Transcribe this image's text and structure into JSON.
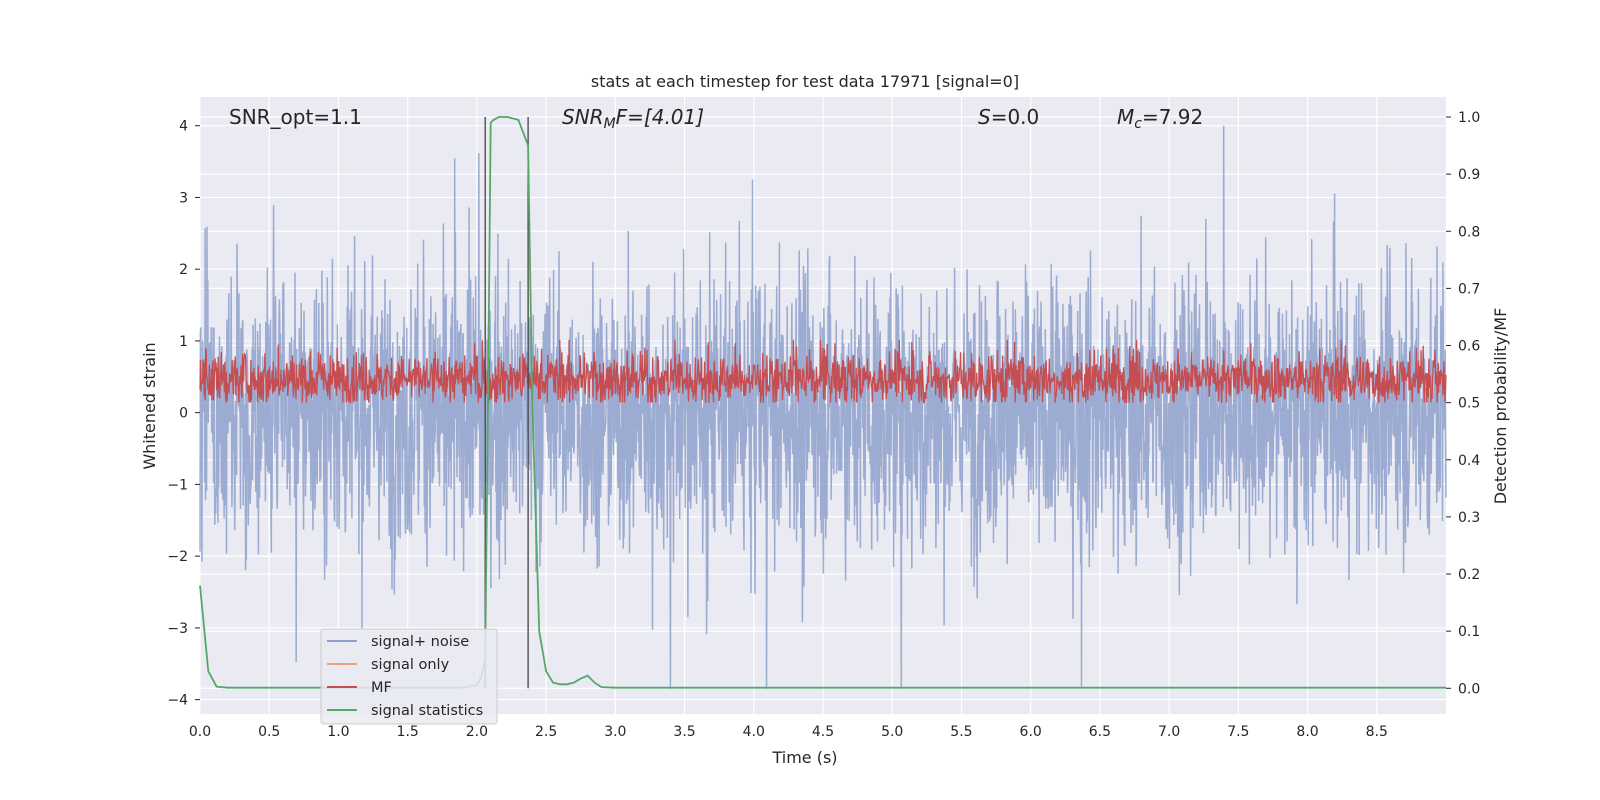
{
  "chart_data": {
    "type": "line",
    "title": "stats at each timestep for test data 17971 [signal=0]",
    "xlabel": "Time (s)",
    "ylabel_left": "Whitened strain",
    "ylabel_right": "Detection probability/MF",
    "xlim": [
      0.0,
      9.0
    ],
    "ylim_left": [
      -4.2,
      4.4
    ],
    "ylim_right": [
      -0.045,
      1.035
    ],
    "x_ticks": [
      0.0,
      0.5,
      1.0,
      1.5,
      2.0,
      2.5,
      3.0,
      3.5,
      4.0,
      4.5,
      5.0,
      5.5,
      6.0,
      6.5,
      7.0,
      7.5,
      8.0,
      8.5
    ],
    "x_tick_labels": [
      "0.0",
      "0.5",
      "1.0",
      "1.5",
      "2.0",
      "2.5",
      "3.0",
      "3.5",
      "4.0",
      "4.5",
      "5.0",
      "5.5",
      "6.0",
      "6.5",
      "7.0",
      "7.5",
      "8.0",
      "8.5"
    ],
    "y_left_ticks": [
      4,
      3,
      2,
      1,
      0,
      -1,
      -2,
      -3,
      -4
    ],
    "y_left_tick_labels": [
      "4",
      "3",
      "2",
      "1",
      "0",
      "−1",
      "−2",
      "−3",
      "−4"
    ],
    "y_right_ticks": [
      1.0,
      0.9,
      0.8,
      0.7,
      0.6,
      0.5,
      0.4,
      0.3,
      0.2,
      0.1,
      0.0
    ],
    "y_right_tick_labels": [
      "1.0",
      "0.9",
      "0.8",
      "0.7",
      "0.6",
      "0.5",
      "0.4",
      "0.3",
      "0.2",
      "0.1",
      "0.0"
    ],
    "annotations": {
      "snr_opt": "SNR_opt=1.1",
      "snr_mf_main": "SNR",
      "snr_mf_sub": "M",
      "snr_mf_rest": "F=[4.01]",
      "s_main": "S",
      "s_rest": "=0.0",
      "mc_main": "M",
      "mc_sub": "c",
      "mc_rest": "=7.92"
    },
    "vertical_lines": [
      2.06,
      2.37
    ],
    "series": [
      {
        "name": "signal+ noise",
        "color": "#8da0cb",
        "axis": "left",
        "approx_range": [
          -3.85,
          4.0
        ]
      },
      {
        "name": "signal only",
        "color": "#e8a27f",
        "axis": "left"
      },
      {
        "name": "MF",
        "color": "#c44e52",
        "axis": "right",
        "approx_range": [
          0.5,
          0.61
        ]
      },
      {
        "name": "signal statistics",
        "color": "#55a868",
        "axis": "right",
        "x": [
          0.0,
          0.06,
          0.12,
          0.2,
          0.4,
          0.8,
          1.2,
          1.6,
          1.9,
          2.0,
          2.03,
          2.06,
          2.08,
          2.1,
          2.12,
          2.16,
          2.22,
          2.3,
          2.37,
          2.4,
          2.45,
          2.5,
          2.55,
          2.6,
          2.65,
          2.7,
          2.75,
          2.8,
          2.85,
          2.9,
          3.0,
          4.0,
          5.0,
          6.0,
          7.0,
          8.0,
          9.0
        ],
        "y": [
          0.18,
          0.03,
          0.003,
          0.001,
          0.001,
          0.001,
          0.001,
          0.001,
          0.001,
          0.005,
          0.02,
          0.05,
          0.5,
          0.99,
          0.995,
          1.0,
          1.0,
          0.995,
          0.95,
          0.5,
          0.1,
          0.03,
          0.01,
          0.007,
          0.007,
          0.01,
          0.017,
          0.022,
          0.01,
          0.002,
          0.001,
          0.001,
          0.001,
          0.001,
          0.001,
          0.001,
          0.001
        ]
      }
    ],
    "legend": {
      "placement": "lower-left",
      "entries": [
        {
          "label": "signal+ noise",
          "color": "#8da0cb"
        },
        {
          "label": "signal only",
          "color": "#e8a27f"
        },
        {
          "label": "MF",
          "color": "#c44e52"
        },
        {
          "label": "signal statistics",
          "color": "#55a868"
        }
      ]
    },
    "colors": {
      "axes_bg": "#eaeaf2",
      "grid": "#ffffff",
      "vline": "#444444"
    }
  }
}
